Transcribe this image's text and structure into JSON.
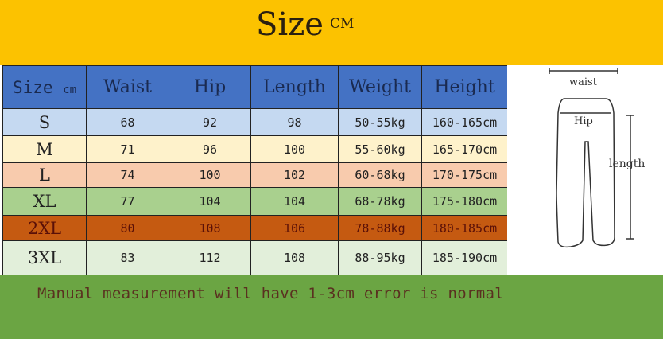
{
  "title": "Size",
  "title_unit": "CM",
  "headers": [
    "Size",
    "cm",
    "Waist",
    "Hip",
    "Length",
    "Weight",
    "Height"
  ],
  "rows": [
    {
      "size": "S",
      "waist": "68",
      "hip": "92",
      "length": "98",
      "weight": "50-55kg",
      "height": "160-165cm",
      "color": "#c5d9f1"
    },
    {
      "size": "M",
      "waist": "71",
      "hip": "96",
      "length": "100",
      "weight": "55-60kg",
      "height": "165-170cm",
      "color": "#fef2cb"
    },
    {
      "size": "L",
      "waist": "74",
      "hip": "100",
      "length": "102",
      "weight": "60-68kg",
      "height": "170-175cm",
      "color": "#f8cbad"
    },
    {
      "size": "XL",
      "waist": "77",
      "hip": "104",
      "length": "104",
      "weight": "68-78kg",
      "height": "175-180cm",
      "color": "#a9d08e"
    },
    {
      "size": "2XL",
      "waist": "80",
      "hip": "108",
      "length": "106",
      "weight": "78-88kg",
      "height": "180-185cm",
      "color": "#c55a11"
    },
    {
      "size": "3XL",
      "waist": "83",
      "hip": "112",
      "length": "108",
      "weight": "88-95kg",
      "height": "185-190cm",
      "color": "#e2efda"
    }
  ],
  "diagram": {
    "waist": "waist",
    "hip": "Hip",
    "length": "length"
  },
  "note": "Manual measurement will have 1-3cm error is normal"
}
